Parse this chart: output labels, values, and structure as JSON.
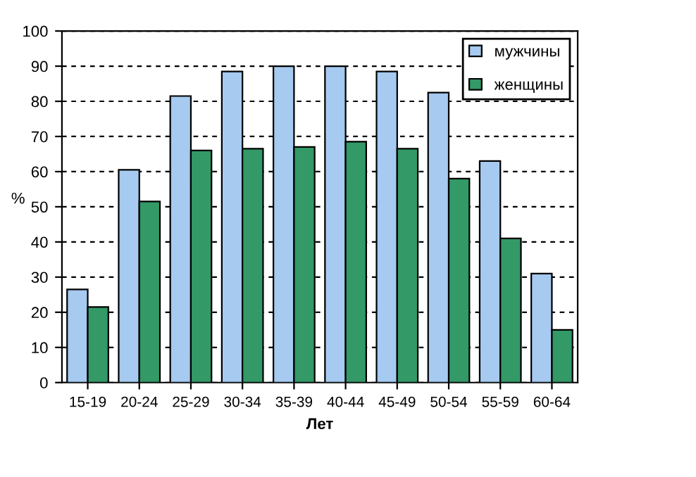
{
  "chart_data": {
    "type": "bar",
    "xlabel": "Лет",
    "ylabel": "%",
    "categories": [
      "15-19",
      "20-24",
      "25-29",
      "30-34",
      "35-39",
      "40-44",
      "45-49",
      "50-54",
      "55-59",
      "60-64"
    ],
    "series": [
      {
        "name": "мужчины",
        "color": "#a6caf0",
        "values": [
          26.5,
          60.5,
          81.5,
          88.5,
          90,
          90,
          88.5,
          82.5,
          63,
          31
        ]
      },
      {
        "name": "женщины",
        "color": "#339966",
        "values": [
          21.5,
          51.5,
          66,
          66.5,
          67,
          68.5,
          66.5,
          58,
          41,
          15
        ]
      }
    ],
    "ylim": [
      0,
      100
    ],
    "yticks": [
      0,
      10,
      20,
      30,
      40,
      50,
      60,
      70,
      80,
      90,
      100
    ],
    "grid": "y",
    "legend": "top right"
  }
}
